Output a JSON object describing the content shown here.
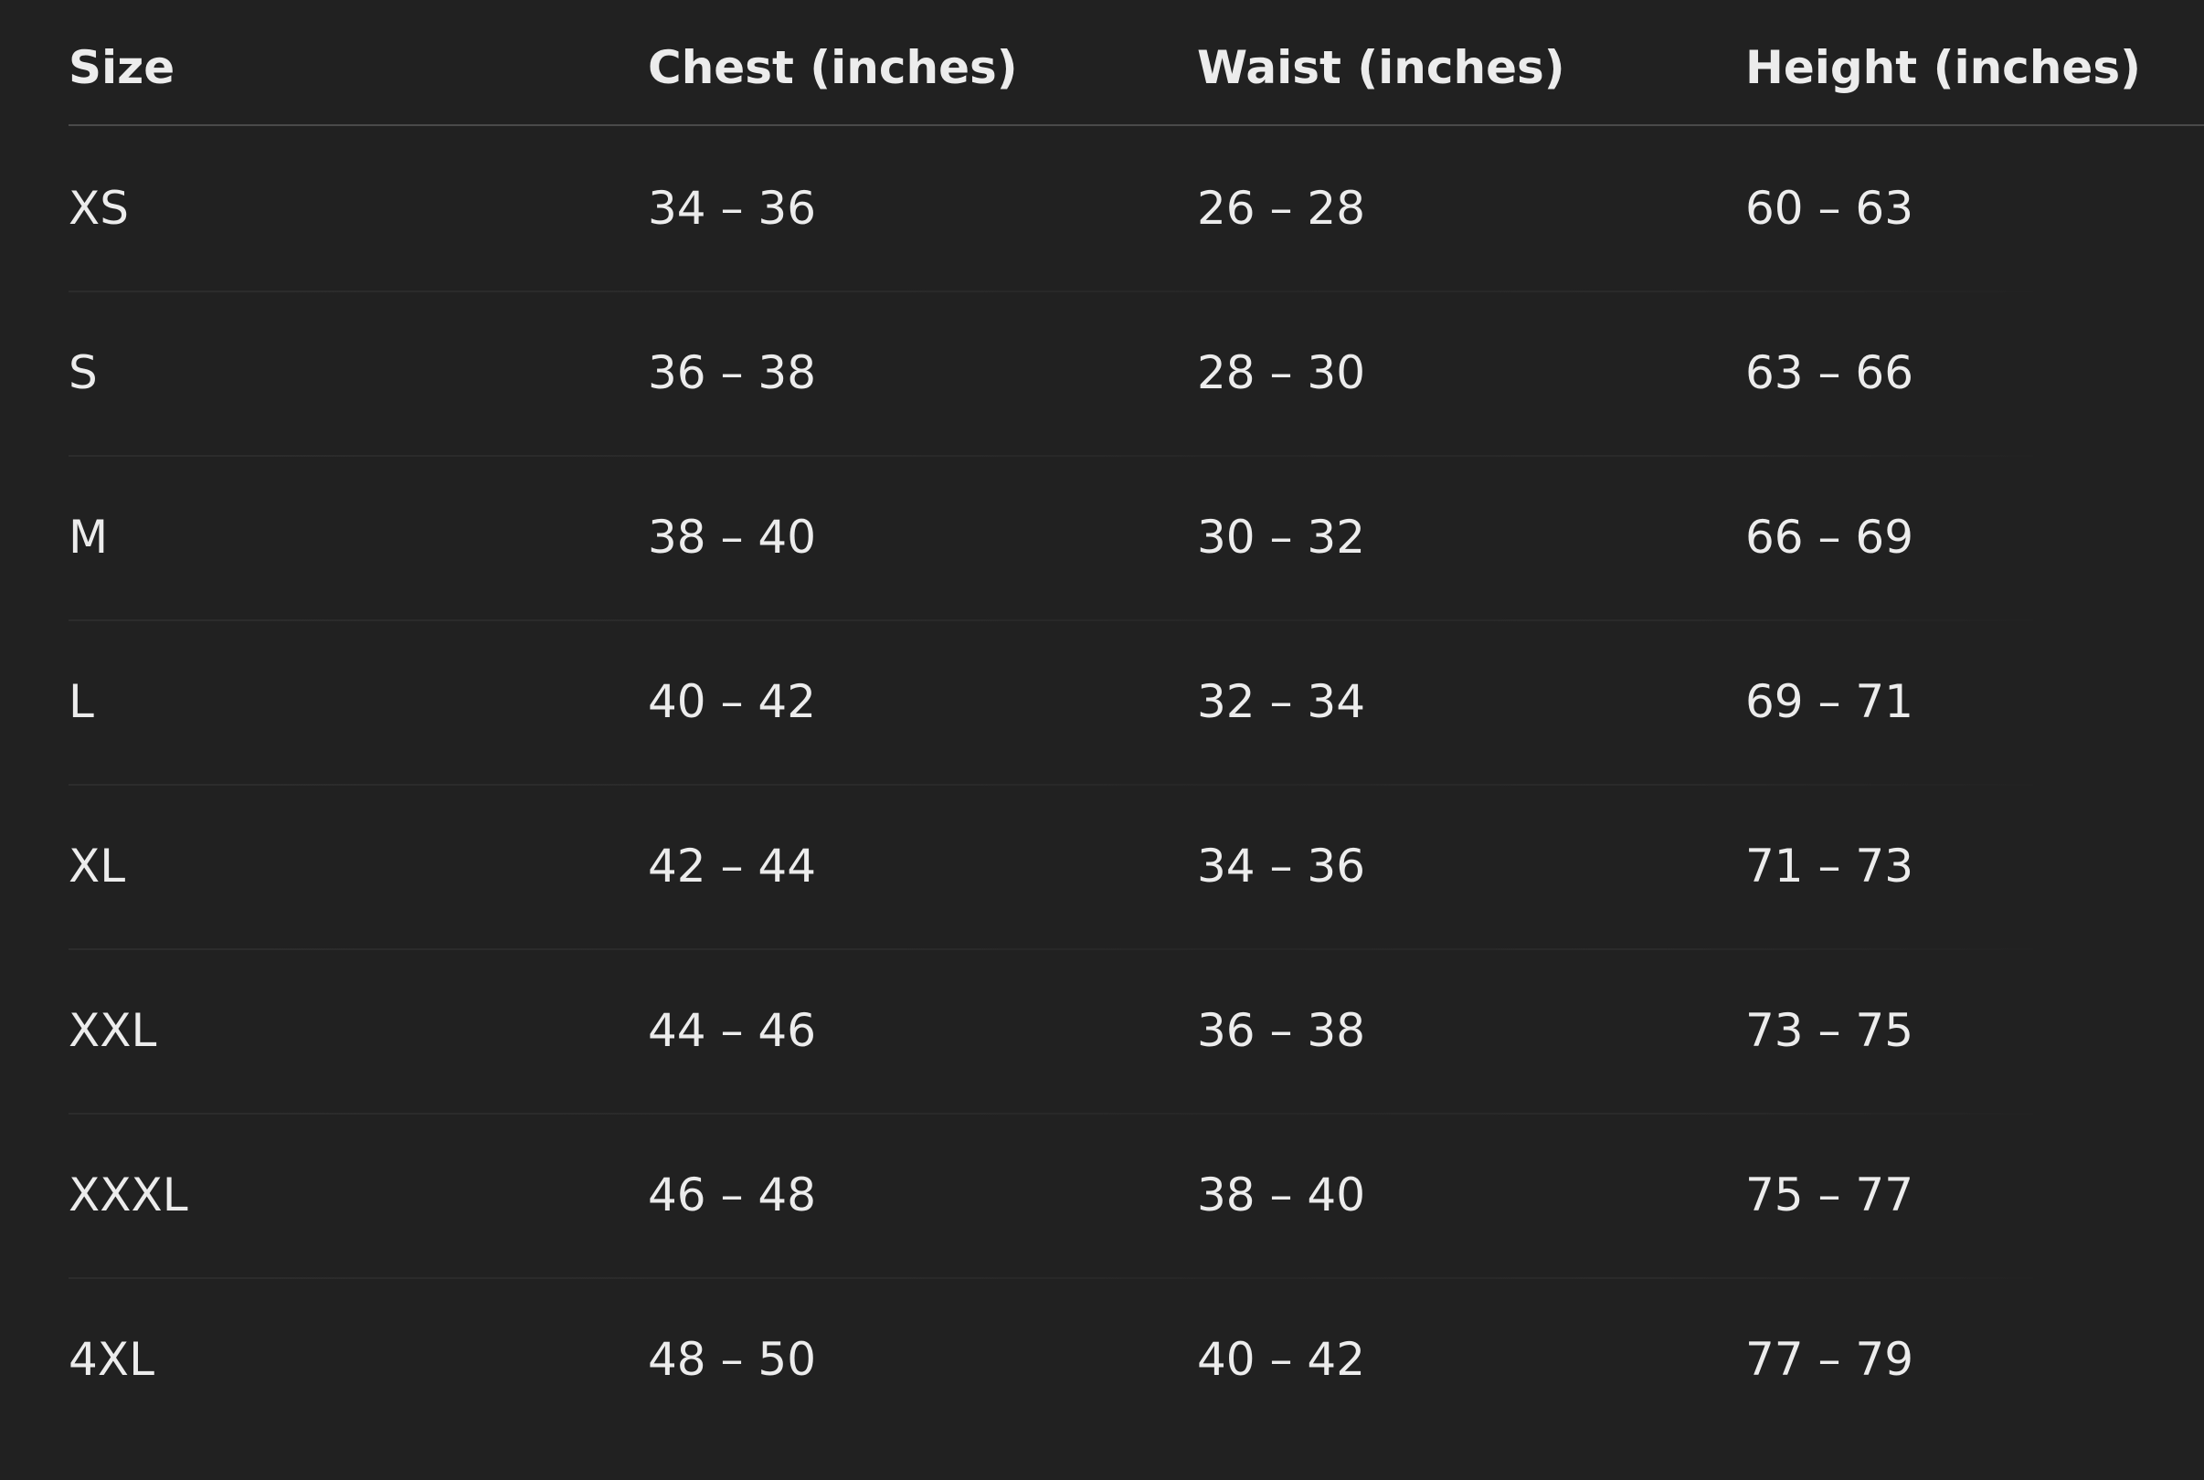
{
  "table": {
    "header": [
      "Size",
      "Chest (inches)",
      "Waist (inches)",
      "Height (inches)"
    ],
    "rows": [
      [
        "XS",
        "34 – 36",
        "26 – 28",
        "60 – 63"
      ],
      [
        "S",
        "36 – 38",
        "28 – 30",
        "63 – 66"
      ],
      [
        "M",
        "38 – 40",
        "30 – 32",
        "66 – 69"
      ],
      [
        "L",
        "40 – 42",
        "32 – 34",
        "69 – 71"
      ],
      [
        "XL",
        "42 – 44",
        "34 – 36",
        "71 – 73"
      ],
      [
        "XXL",
        "44 – 46",
        "36 – 38",
        "73 – 75"
      ],
      [
        "XXXL",
        "46 – 48",
        "38 – 40",
        "75 – 77"
      ],
      [
        "4XL",
        "48 – 50",
        "40 – 42",
        "77 – 79"
      ]
    ]
  }
}
